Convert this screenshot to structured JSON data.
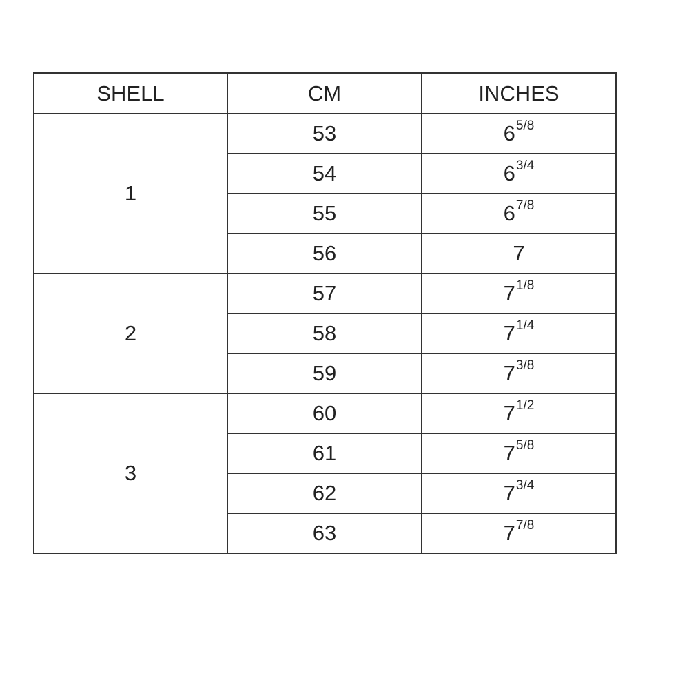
{
  "headers": [
    "SHELL",
    "CM",
    "INCHES"
  ],
  "groups": [
    {
      "shell": "1",
      "rows": [
        {
          "cm": "53",
          "inch_whole": "6",
          "inch_fraction": "5/8"
        },
        {
          "cm": "54",
          "inch_whole": "6",
          "inch_fraction": "3/4"
        },
        {
          "cm": "55",
          "inch_whole": "6",
          "inch_fraction": "7/8"
        },
        {
          "cm": "56",
          "inch_whole": "7",
          "inch_fraction": ""
        }
      ]
    },
    {
      "shell": "2",
      "rows": [
        {
          "cm": "57",
          "inch_whole": "7",
          "inch_fraction": "1/8"
        },
        {
          "cm": "58",
          "inch_whole": "7",
          "inch_fraction": "1/4"
        },
        {
          "cm": "59",
          "inch_whole": "7",
          "inch_fraction": "3/8"
        }
      ]
    },
    {
      "shell": "3",
      "rows": [
        {
          "cm": "60",
          "inch_whole": "7",
          "inch_fraction": "1/2"
        },
        {
          "cm": "61",
          "inch_whole": "7",
          "inch_fraction": "5/8"
        },
        {
          "cm": "62",
          "inch_whole": "7",
          "inch_fraction": "3/4"
        },
        {
          "cm": "63",
          "inch_whole": "7",
          "inch_fraction": "7/8"
        }
      ]
    }
  ]
}
